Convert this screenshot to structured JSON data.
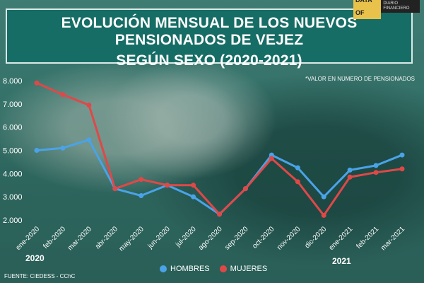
{
  "header": {
    "title_line1": "EVOLUCIÓN MENSUAL DE LOS NUEVOS PENSIONADOS DE VEJEZ",
    "title_line2": "SEGÚN SEXO (2020-2021)",
    "note": "*VALOR EN NÚMERO DE PENSIONADOS",
    "logo_text1": "DATA OF",
    "logo_text2": "DIARIO FINANCIERO"
  },
  "footer": {
    "source": "FUENTE: CIEDESS - CChC",
    "year_2020": "2020",
    "year_2021": "2021"
  },
  "colors": {
    "hombres": "#4aa3e8",
    "mujeres": "#e04848"
  },
  "chart_data": {
    "type": "line",
    "categories": [
      "ene-2020",
      "feb-2020",
      "mar-2020",
      "abr-2020",
      "may-2020",
      "jun-2020",
      "jul-2020",
      "ago-2020",
      "sep-2020",
      "oct-2020",
      "nov-2020",
      "dic-2020",
      "ene-2021",
      "feb-2021",
      "mar-2021"
    ],
    "series": [
      {
        "name": "HOMBRES",
        "values": [
          5000,
          5100,
          5450,
          3350,
          3050,
          3500,
          3000,
          2250,
          3350,
          4800,
          4250,
          3000,
          4150,
          4350,
          4800
        ]
      },
      {
        "name": "MUJERES",
        "values": [
          7900,
          7400,
          6950,
          3350,
          3750,
          3500,
          3500,
          2250,
          3350,
          4650,
          3650,
          2200,
          3850,
          4050,
          4200
        ]
      }
    ],
    "y_ticks": [
      "2.000",
      "3.000",
      "4.000",
      "5.000",
      "6.000",
      "7.000",
      "8.000"
    ],
    "ylim": [
      2000,
      8000
    ],
    "grid": false,
    "legend": "bottom-center"
  }
}
